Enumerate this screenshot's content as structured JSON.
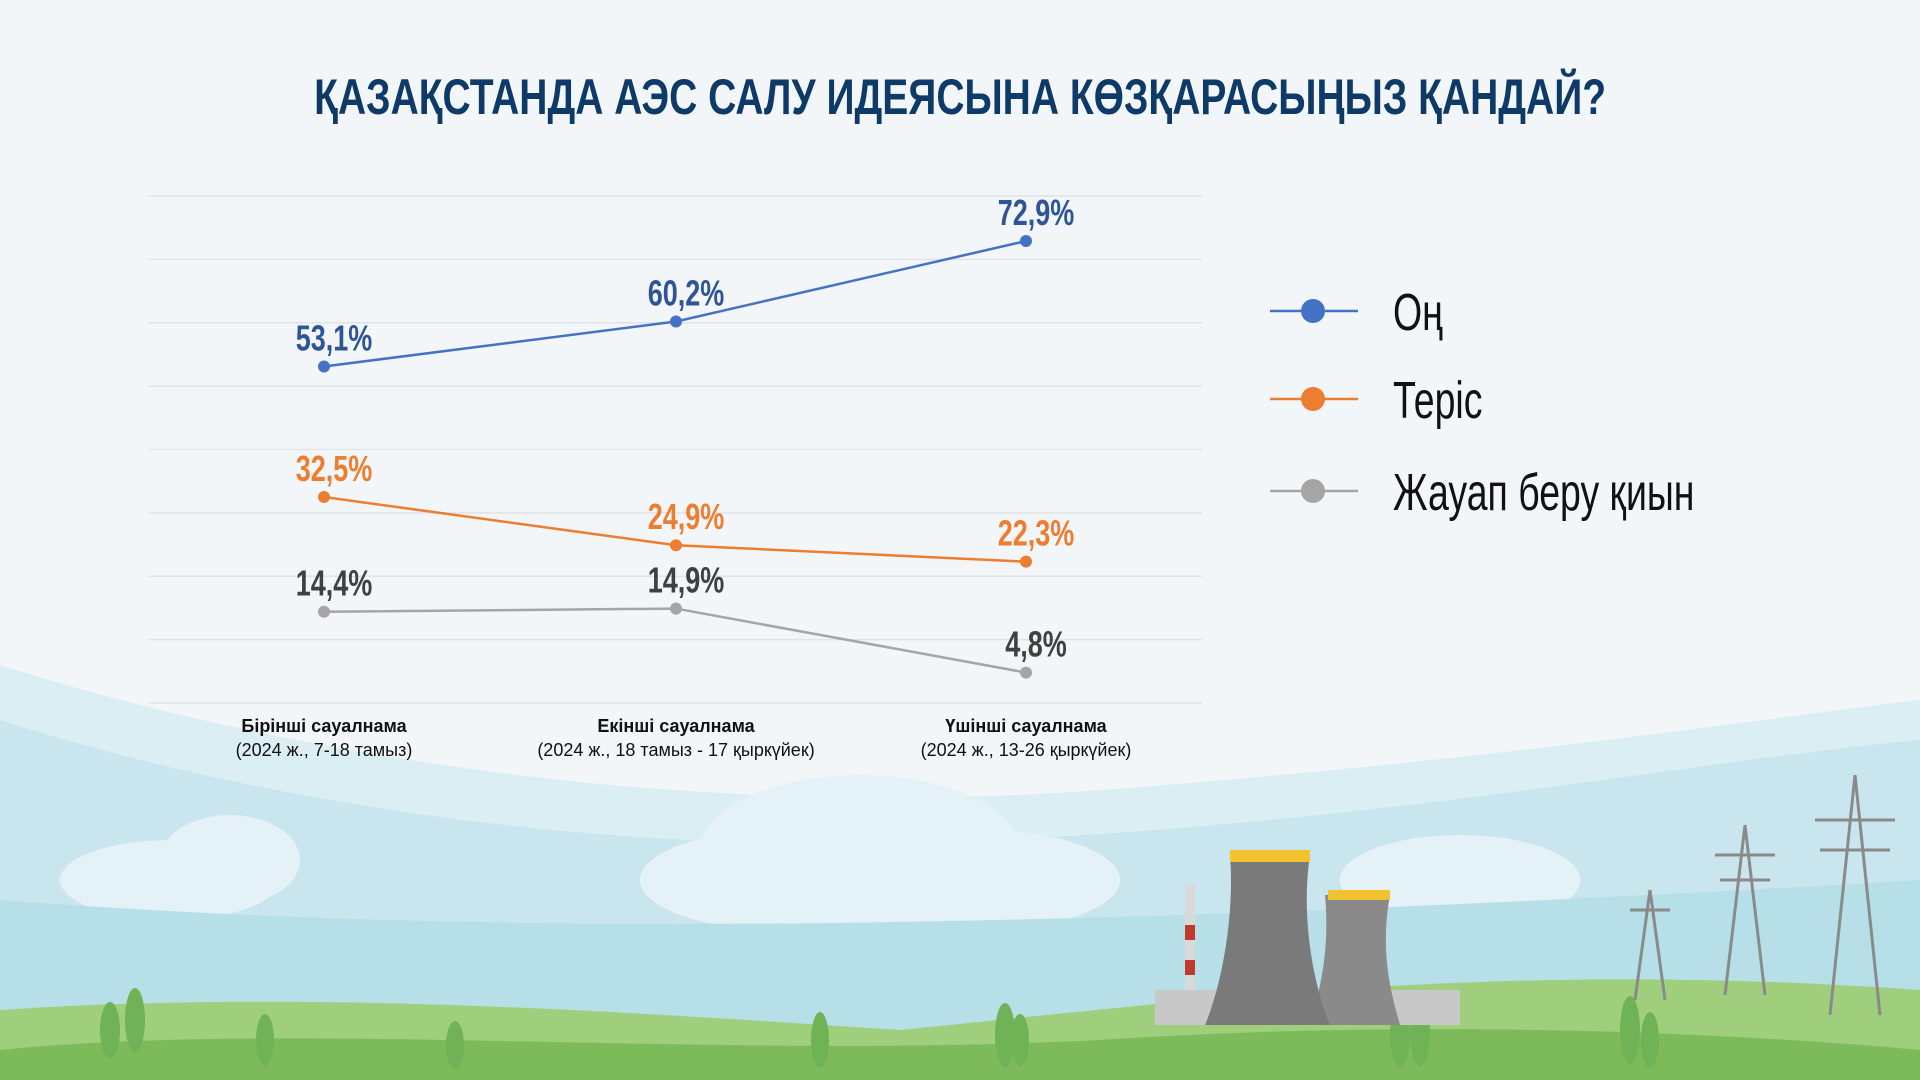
{
  "title": "ҚАЗАҚСТАНДА АЭС САЛУ ИДЕЯСЫНА КӨЗҚАРАСЫҢЫЗ ҚАНДАЙ?",
  "chart_data": {
    "type": "line",
    "title": "ҚАЗАҚСТАНДА АЭС САЛУ ИДЕЯСЫНА КӨЗҚАРАСЫҢЫЗ ҚАНДАЙ?",
    "categories": [
      {
        "name": "Бірінші сауалнама",
        "period": "(2024 ж., 7-18 тамыз)"
      },
      {
        "name": "Екінші сауалнама",
        "period": "(2024 ж., 18 тамыз - 17 қыркүйек)"
      },
      {
        "name": "Үшінші сауалнама",
        "period": "(2024 ж., 13-26 қыркүйек)"
      }
    ],
    "series": [
      {
        "name": "Оң",
        "color": "#4472c4",
        "label_color": "#2f5597",
        "values": [
          53.1,
          60.2,
          72.9
        ],
        "labels": [
          "53,1%",
          "60,2%",
          "72,9%"
        ]
      },
      {
        "name": "Теріс",
        "color": "#ed7d31",
        "label_color": "#ed7d31",
        "values": [
          32.5,
          24.9,
          22.3
        ],
        "labels": [
          "32,5%",
          "24,9%",
          "22,3%"
        ]
      },
      {
        "name": "Жауап беру қиын",
        "color": "#a5a5a5",
        "label_color": "#404040",
        "values": [
          14.4,
          14.9,
          4.8
        ],
        "labels": [
          "14,4%",
          "14,9%",
          "4,8%"
        ]
      }
    ],
    "ylim": [
      0,
      80
    ],
    "ytick_step": 10,
    "grid": true,
    "legend_placement": "right",
    "xlabel": "",
    "ylabel": ""
  }
}
